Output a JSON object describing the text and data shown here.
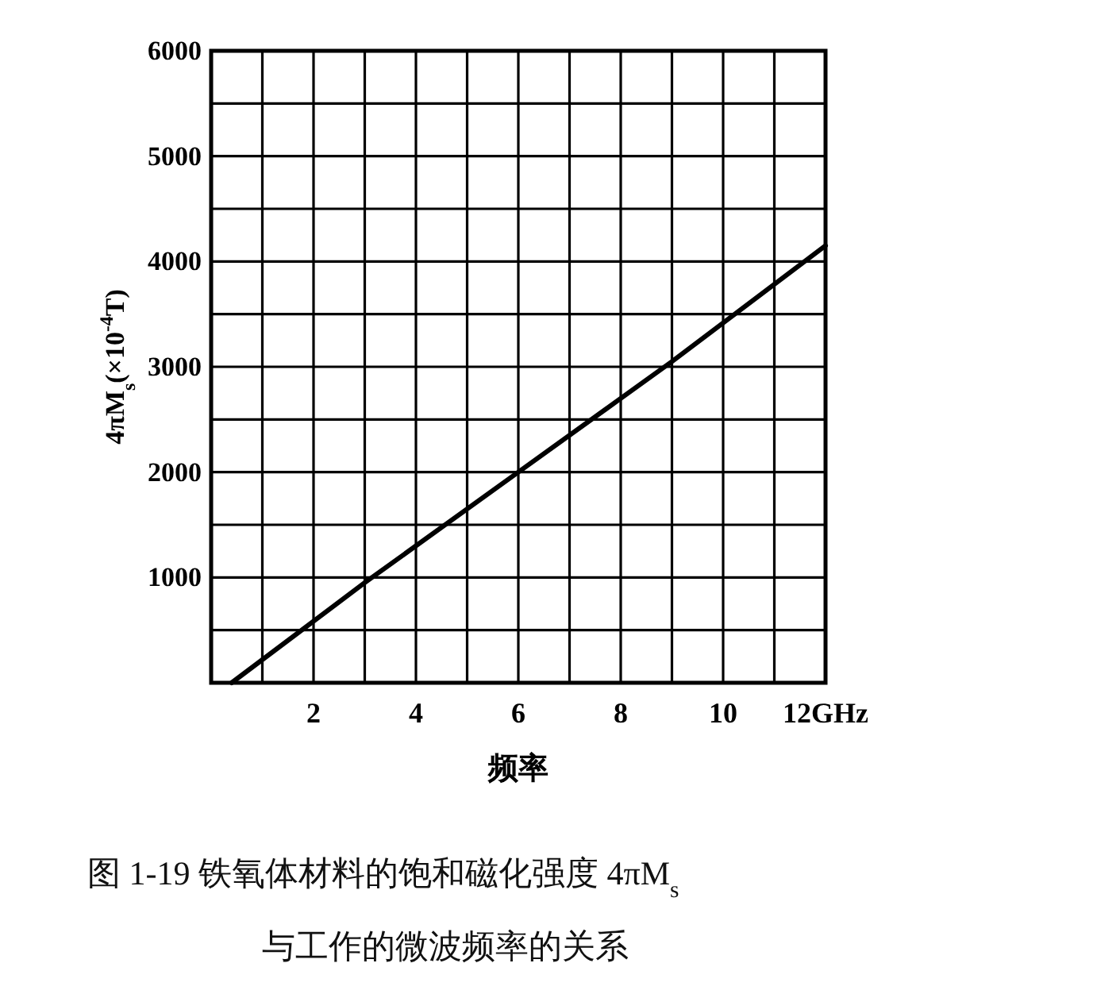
{
  "chart_data": {
    "type": "line",
    "xlabel": "频率",
    "ylabel": "4πM$_{s}$(×10$^{-4}$T)",
    "annotations": [
      "图 1-19   铁氧体材料的饱和磁化强度 4πM$_{s}$",
      "与工作的微波频率的关系"
    ],
    "x": [
      0.4,
      3,
      6,
      9,
      12
    ],
    "series": [
      {
        "color": "#000000",
        "values": [
          0,
          950,
          2000,
          3050,
          4150
        ]
      }
    ],
    "xlim": [
      0,
      12
    ],
    "ylim": [
      0,
      6000
    ],
    "xticks": [
      {
        "value": 1,
        "label": null
      },
      2,
      {
        "value": 3,
        "label": null
      },
      4,
      {
        "value": 5,
        "label": null
      },
      6,
      {
        "value": 7,
        "label": null
      },
      8,
      {
        "value": 9,
        "label": null
      },
      10,
      {
        "value": 11,
        "label": null
      },
      {
        "value": 12,
        "label": "12GHz"
      }
    ],
    "yticks": [
      {
        "value": 500,
        "label": null
      },
      1000,
      {
        "value": 1500,
        "label": null
      },
      2000,
      {
        "value": 2500,
        "label": null
      },
      3000,
      {
        "value": 3500,
        "label": null
      },
      4000,
      {
        "value": 4500,
        "label": null
      },
      5000,
      {
        "value": 5500,
        "label": null
      },
      6000
    ],
    "grid": true,
    "line_style": "solid",
    "marker": "none"
  }
}
